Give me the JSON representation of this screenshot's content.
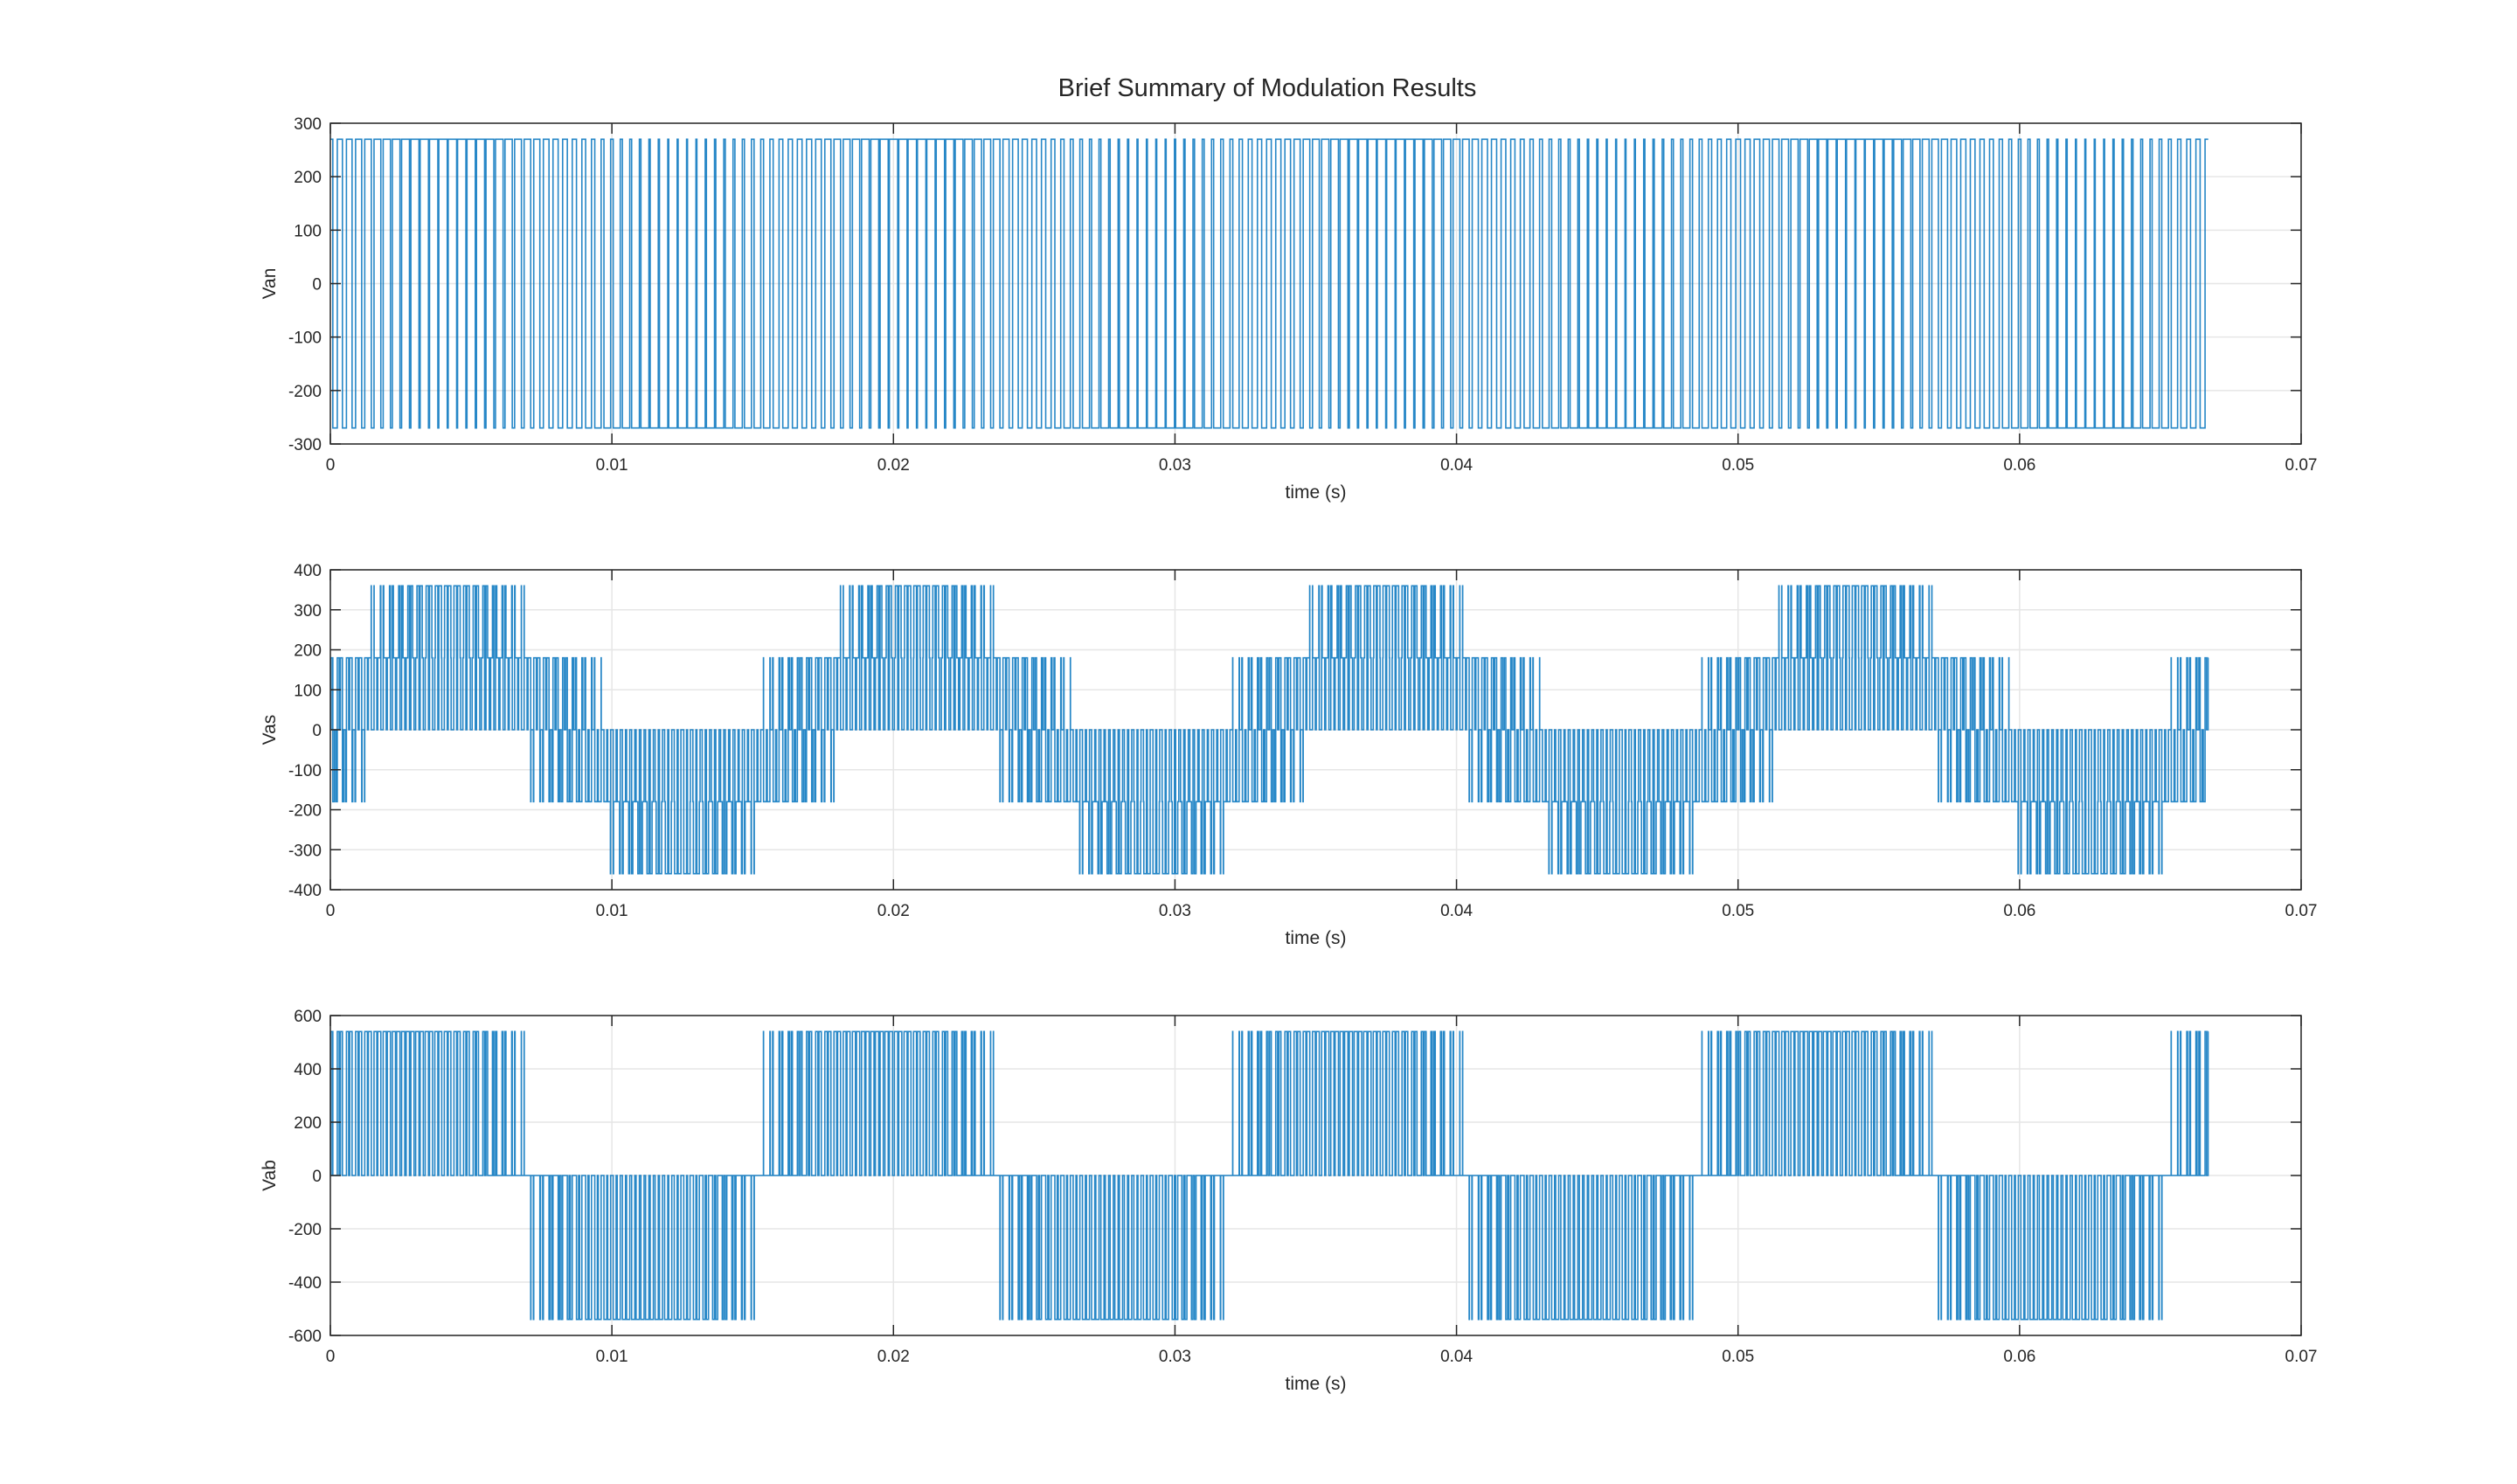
{
  "title": "Brief Summary of Modulation Results",
  "chart_data": [
    {
      "type": "line",
      "ylabel": "Van",
      "xlabel": "time (s)",
      "xlim": [
        0,
        0.07
      ],
      "ylim": [
        -300,
        300
      ],
      "xticks": [
        "0",
        "0.01",
        "0.02",
        "0.03",
        "0.04",
        "0.05",
        "0.06",
        "0.07"
      ],
      "yticks": [
        "-300",
        "-200",
        "-100",
        "0",
        "100",
        "200",
        "300"
      ],
      "grid": true,
      "series": [
        {
          "color": "#0072BD",
          "signal": "two-level PWM",
          "levels": [
            -270,
            270
          ],
          "fundamental_hz": 60,
          "carrier_hz": 3000,
          "t_end": 0.0667
        }
      ]
    },
    {
      "type": "line",
      "ylabel": "Vas",
      "xlabel": "time (s)",
      "xlim": [
        0,
        0.07
      ],
      "ylim": [
        -400,
        400
      ],
      "xticks": [
        "0",
        "0.01",
        "0.02",
        "0.03",
        "0.04",
        "0.05",
        "0.06",
        "0.07"
      ],
      "yticks": [
        "-400",
        "-300",
        "-200",
        "-100",
        "0",
        "100",
        "200",
        "300",
        "400"
      ],
      "grid": true,
      "series": [
        {
          "color": "#0072BD",
          "signal": "phase voltage PWM",
          "levels": [
            -360,
            -180,
            0,
            180,
            360
          ],
          "fundamental_hz": 60,
          "carrier_hz": 3000,
          "t_end": 0.0667
        }
      ]
    },
    {
      "type": "line",
      "ylabel": "Vab",
      "xlabel": "time (s)",
      "xlim": [
        0,
        0.07
      ],
      "ylim": [
        -600,
        600
      ],
      "xticks": [
        "0",
        "0.01",
        "0.02",
        "0.03",
        "0.04",
        "0.05",
        "0.06",
        "0.07"
      ],
      "yticks": [
        "-600",
        "-400",
        "-200",
        "0",
        "200",
        "400",
        "600"
      ],
      "grid": true,
      "series": [
        {
          "color": "#0072BD",
          "signal": "line-line PWM",
          "levels": [
            -540,
            0,
            540
          ],
          "fundamental_hz": 60,
          "carrier_hz": 3000,
          "t_end": 0.0667
        }
      ]
    }
  ]
}
